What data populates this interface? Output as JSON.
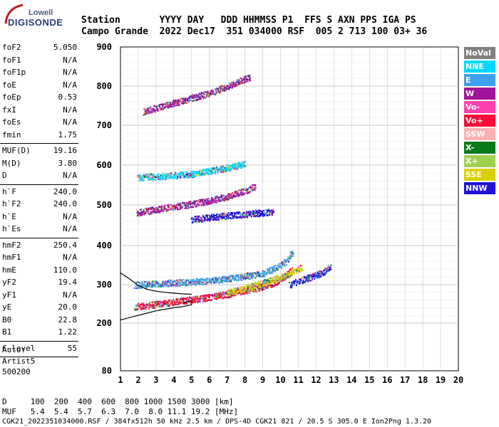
{
  "logo": {
    "top": "Lowell",
    "bottom": "DIGISONDE"
  },
  "header": {
    "line1": "Station       YYYY DAY   DDD HHMMSS P1  FFS S AXN PPS IGA PS",
    "line2": "Campo Grande  2022 Dec17  351 034000 RSF  005 2 713 100 03+ 36"
  },
  "params": [
    {
      "key": "foF2",
      "value": "5.050"
    },
    {
      "key": "foF1",
      "value": "N/A"
    },
    {
      "key": "foF1p",
      "value": "N/A"
    },
    {
      "key": "foE",
      "value": "N/A"
    },
    {
      "key": "foEp",
      "value": "0.53"
    },
    {
      "key": "fxI",
      "value": "N/A"
    },
    {
      "key": "foEs",
      "value": "N/A"
    },
    {
      "key": "fmin",
      "value": "1.75"
    },
    {
      "key": "MUF(D)",
      "value": "19.16"
    },
    {
      "key": "M(D)",
      "value": "3.80"
    },
    {
      "key": "D",
      "value": "N/A"
    },
    {
      "key": "h`F",
      "value": "240.0"
    },
    {
      "key": "h`F2",
      "value": "240.0"
    },
    {
      "key": "h`E",
      "value": "N/A"
    },
    {
      "key": "h`Es",
      "value": "N/A"
    },
    {
      "key": "hmF2",
      "value": "250.4"
    },
    {
      "key": "hmF1",
      "value": "N/A"
    },
    {
      "key": "hmE",
      "value": "110.0"
    },
    {
      "key": "yF2",
      "value": "19.4"
    },
    {
      "key": "yF1",
      "value": "N/A"
    },
    {
      "key": "yE",
      "value": "20.0"
    },
    {
      "key": "B0",
      "value": "22.8"
    },
    {
      "key": "B1",
      "value": "1.22"
    },
    {
      "key": "C-level",
      "value": "55"
    }
  ],
  "auto": {
    "label": "Auto:",
    "line1": "Artist5",
    "line2": "500200"
  },
  "legend": [
    {
      "label": "NoVal",
      "color": "#808080"
    },
    {
      "label": "NNE",
      "color": "#00d8ff"
    },
    {
      "label": "E",
      "color": "#3aa0f0"
    },
    {
      "label": "W",
      "color": "#a0149a"
    },
    {
      "label": "Vo-",
      "color": "#ff40b0"
    },
    {
      "label": "Vo+",
      "color": "#ff0a3a"
    },
    {
      "label": "SSW",
      "color": "#ffb0b0"
    },
    {
      "label": "X-",
      "color": "#0a7a1a"
    },
    {
      "label": "X+",
      "color": "#a0d050"
    },
    {
      "label": "SSE",
      "color": "#d8d000"
    },
    {
      "label": "NNW",
      "color": "#2010d8"
    }
  ],
  "footer": {
    "line1": "D     100  200  400  600  800 1000 1500 3000 [km]",
    "line2": "MUF   5.4  5.4  5.7  6.3  7.0  8.0 11.1 19.2 [MHz]",
    "line3": "CGK21_2022351034000.RSF / 384fx512h 50 kHz 2.5 km / DPS-4D CGK21 821 / 20.5 S 305.0 E Ion2Png 1.3.20"
  },
  "chart_data": {
    "type": "scatter",
    "title": "",
    "xlabel": "",
    "ylabel": "",
    "xlim": [
      1,
      20
    ],
    "ylim": [
      80,
      900
    ],
    "grid": true,
    "x_ticks": [
      "1",
      "2",
      "3",
      "4",
      "5",
      "6",
      "7",
      "8",
      "9",
      "10",
      "11",
      "12",
      "13",
      "14",
      "15",
      "16",
      "17",
      "18",
      "19",
      "20"
    ],
    "y_ticks": [
      "80",
      "200",
      "300",
      "400",
      "500",
      "600",
      "700",
      "800",
      "900"
    ],
    "y_tick_values": [
      80,
      200,
      300,
      400,
      500,
      600,
      700,
      800,
      900
    ],
    "traces": [
      {
        "name": "o_trace_main",
        "color": "#ff0a3a",
        "points": [
          [
            1.8,
            244
          ],
          [
            2.5,
            247
          ],
          [
            3.0,
            250
          ],
          [
            4.0,
            256
          ],
          [
            5.0,
            262
          ],
          [
            6.0,
            268
          ],
          [
            7.0,
            276
          ],
          [
            8.0,
            286
          ],
          [
            9.0,
            296
          ],
          [
            9.8,
            310
          ],
          [
            10.3,
            325
          ],
          [
            10.6,
            340
          ]
        ]
      },
      {
        "name": "o_trace_upper",
        "color": "#3aa0f0",
        "points": [
          [
            1.8,
            300
          ],
          [
            2.5,
            302
          ],
          [
            3.0,
            303
          ],
          [
            4.0,
            306
          ],
          [
            5.0,
            308
          ],
          [
            6.0,
            311
          ],
          [
            7.0,
            316
          ],
          [
            8.0,
            322
          ],
          [
            9.0,
            330
          ],
          [
            9.8,
            345
          ],
          [
            10.3,
            360
          ],
          [
            10.7,
            385
          ]
        ]
      },
      {
        "name": "x_trace",
        "color": "#d8d000",
        "points": [
          [
            7.0,
            280
          ],
          [
            8.0,
            292
          ],
          [
            9.0,
            305
          ],
          [
            10.0,
            320
          ],
          [
            10.8,
            335
          ],
          [
            11.2,
            345
          ]
        ]
      },
      {
        "name": "x_trace_nnw",
        "color": "#2010d8",
        "points": [
          [
            10.5,
            300
          ],
          [
            11.0,
            310
          ],
          [
            11.5,
            318
          ],
          [
            12.0,
            325
          ],
          [
            12.5,
            335
          ],
          [
            12.8,
            345
          ]
        ]
      },
      {
        "name": "second_hop",
        "color": "#a0149a",
        "points": [
          [
            1.9,
            482
          ],
          [
            3.0,
            490
          ],
          [
            4.0,
            497
          ],
          [
            5.0,
            503
          ],
          [
            6.0,
            512
          ],
          [
            7.0,
            522
          ],
          [
            8.0,
            536
          ],
          [
            8.6,
            548
          ]
        ]
      },
      {
        "name": "second_hop_upper",
        "color": "#00d8ff",
        "points": [
          [
            2.0,
            570
          ],
          [
            3.0,
            572
          ],
          [
            4.0,
            575
          ],
          [
            5.0,
            578
          ],
          [
            6.0,
            586
          ],
          [
            7.0,
            594
          ],
          [
            8.0,
            604
          ]
        ]
      },
      {
        "name": "third_hop",
        "color": "#a0149a",
        "points": [
          [
            2.3,
            735
          ],
          [
            3.0,
            745
          ],
          [
            4.0,
            758
          ],
          [
            5.0,
            770
          ],
          [
            6.0,
            783
          ],
          [
            7.0,
            800
          ],
          [
            7.8,
            815
          ],
          [
            8.3,
            825
          ]
        ]
      },
      {
        "name": "scatter_ne",
        "color": "#2010d8",
        "points": [
          [
            5.0,
            465
          ],
          [
            6.0,
            470
          ],
          [
            7.0,
            475
          ],
          [
            8.0,
            478
          ],
          [
            9.0,
            482
          ],
          [
            9.6,
            485
          ]
        ]
      }
    ],
    "profile_lines": [
      {
        "name": "profile_upper",
        "color": "#000000",
        "points": [
          [
            1.0,
            330
          ],
          [
            1.5,
            315
          ],
          [
            2.0,
            298
          ],
          [
            2.5,
            288
          ],
          [
            3.0,
            283
          ],
          [
            3.5,
            280
          ],
          [
            4.0,
            278
          ],
          [
            4.5,
            276
          ],
          [
            5.0,
            275
          ]
        ]
      },
      {
        "name": "profile_lower",
        "color": "#000000",
        "points": [
          [
            1.0,
            208
          ],
          [
            1.8,
            218
          ],
          [
            2.5,
            226
          ],
          [
            3.0,
            232
          ],
          [
            3.5,
            236
          ],
          [
            4.0,
            240
          ],
          [
            4.5,
            243
          ],
          [
            5.0,
            248
          ],
          [
            5.0,
            258
          ],
          [
            4.5,
            252
          ]
        ]
      }
    ]
  }
}
